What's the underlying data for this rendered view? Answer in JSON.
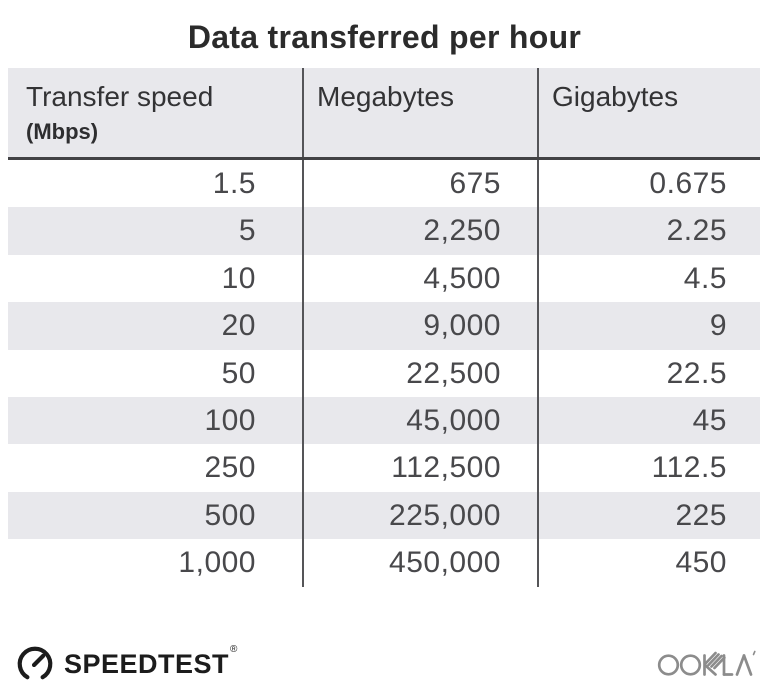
{
  "title": "Data transferred per hour",
  "table": {
    "headers": [
      {
        "label": "Transfer speed",
        "sub": "(Mbps)"
      },
      {
        "label": "Megabytes"
      },
      {
        "label": "Gigabytes"
      }
    ],
    "rows": [
      [
        "1.5",
        "675",
        "0.675"
      ],
      [
        "5",
        "2,250",
        "2.25"
      ],
      [
        "10",
        "4,500",
        "4.5"
      ],
      [
        "20",
        "9,000",
        "9"
      ],
      [
        "50",
        "22,500",
        "22.5"
      ],
      [
        "100",
        "45,000",
        "45"
      ],
      [
        "250",
        "112,500",
        "112.5"
      ],
      [
        "500",
        "225,000",
        "225"
      ],
      [
        "1,000",
        "450,000",
        "450"
      ]
    ]
  },
  "chart_data": {
    "type": "table",
    "title": "Data transferred per hour",
    "columns": [
      "Transfer speed (Mbps)",
      "Megabytes",
      "Gigabytes"
    ],
    "rows": [
      [
        1.5,
        675,
        0.675
      ],
      [
        5,
        2250,
        2.25
      ],
      [
        10,
        4500,
        4.5
      ],
      [
        20,
        9000,
        9
      ],
      [
        50,
        22500,
        22.5
      ],
      [
        100,
        45000,
        45
      ],
      [
        250,
        112500,
        112.5
      ],
      [
        500,
        225000,
        225
      ],
      [
        1000,
        450000,
        450
      ]
    ],
    "layout": {
      "striped_rows": true,
      "column_dividers": true,
      "header_underline": true
    }
  },
  "footer": {
    "speedtest_label": "SPEEDTEST",
    "speedtest_mark": "®",
    "ookla_label": "OOKLA"
  },
  "colors": {
    "header_bg": "#e8e8ec",
    "stripe_bg": "#e8e8ec",
    "divider": "#555558",
    "header_underline": "#424245",
    "title_text": "#2b2b2b",
    "cell_text": "#48484b",
    "speedtest_black": "#1c1c1c",
    "ookla_gray": "#8c8c8c"
  }
}
